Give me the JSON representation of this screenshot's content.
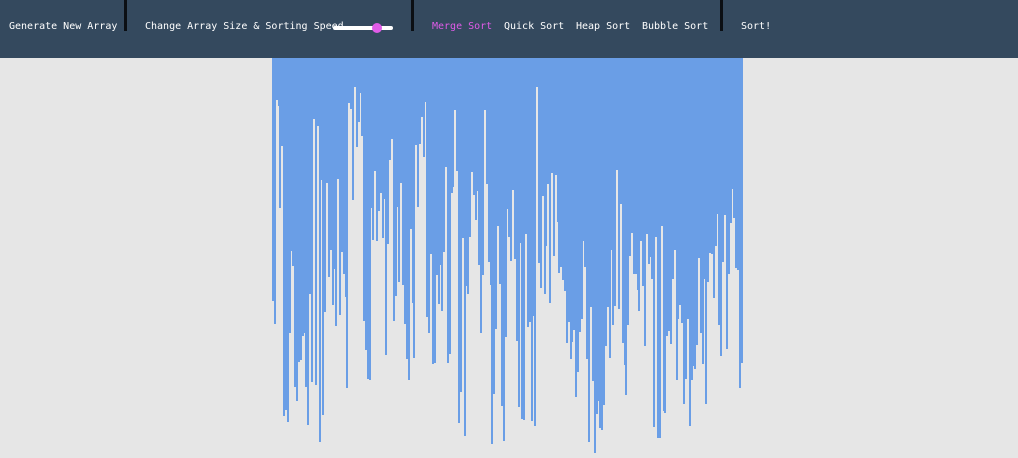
{
  "navbar": {
    "generate_label": "Generate New Array",
    "size_speed_label": "Change Array Size & Sorting Speed",
    "slider_value": 0.73,
    "algorithms": {
      "merge": "Merge Sort",
      "quick": "Quick Sort",
      "heap": "Heap Sort",
      "bubble": "Bubble Sort"
    },
    "active_algorithm": "merge",
    "sort_label": "Sort!"
  },
  "colors": {
    "navbar_bg": "#34495e",
    "accent": "#e05ce8",
    "bar": "#6a9ee6",
    "background": "#e6e6e6"
  },
  "array": {
    "values": [
      243,
      266,
      42,
      48,
      150,
      88,
      358,
      352,
      364,
      275,
      193,
      208,
      329,
      343,
      304,
      302,
      278,
      275,
      329,
      367,
      236,
      324,
      61,
      327,
      68,
      384,
      122,
      357,
      254,
      125,
      219,
      192,
      247,
      211,
      268,
      121,
      257,
      194,
      216,
      239,
      330,
      45,
      51,
      142,
      29,
      89,
      64,
      35,
      78,
      263,
      292,
      321,
      322,
      150,
      182,
      113,
      183,
      153,
      135,
      180,
      141,
      297,
      186,
      102,
      81,
      263,
      238,
      149,
      224,
      125,
      227,
      266,
      301,
      322,
      171,
      245,
      300,
      87,
      149,
      86,
      59,
      99,
      44,
      259,
      275,
      196,
      306,
      305,
      217,
      246,
      207,
      253,
      194,
      109,
      305,
      296,
      135,
      129,
      52,
      113,
      365,
      334,
      180,
      378,
      228,
      236,
      179,
      114,
      137,
      162,
      133,
      207,
      275,
      217,
      52,
      126,
      204,
      227,
      386,
      336,
      271,
      168,
      226,
      348,
      383,
      279,
      151,
      179,
      203,
      132,
      201,
      283,
      349,
      185,
      361,
      362,
      176,
      269,
      264,
      363,
      258,
      368,
      29,
      205,
      230,
      138,
      236,
      188,
      126,
      245,
      115,
      198,
      117,
      164,
      215,
      209,
      222,
      233,
      285,
      264,
      301,
      284,
      272,
      339,
      314,
      274,
      261,
      183,
      209,
      301,
      384,
      249,
      323,
      395,
      356,
      343,
      370,
      372,
      347,
      288,
      249,
      300,
      192,
      267,
      248,
      112,
      251,
      146,
      285,
      307,
      337,
      267,
      198,
      175,
      216,
      216,
      232,
      253,
      183,
      228,
      288,
      176,
      206,
      199,
      221,
      369,
      179,
      380,
      380,
      168,
      353,
      355,
      278,
      273,
      286,
      221,
      192,
      322,
      261,
      247,
      265,
      346,
      321,
      261,
      368,
      322,
      308,
      311,
      287,
      200,
      275,
      306,
      221,
      346,
      224,
      195,
      196,
      240,
      188,
      156,
      267,
      298,
      204,
      157,
      291,
      216,
      165,
      131,
      160,
      210,
      212,
      330,
      305
    ]
  }
}
